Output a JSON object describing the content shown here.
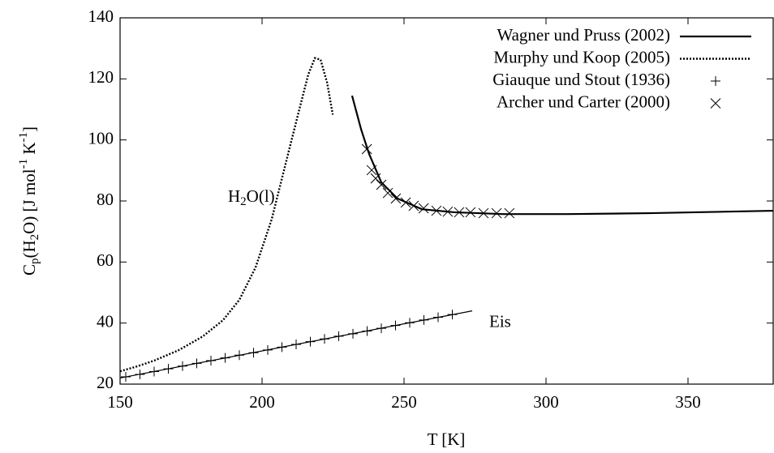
{
  "chart_data": {
    "type": "line",
    "xlabel": "T [K]",
    "ylabel_parts": [
      "C",
      "p",
      "(H",
      "2",
      "O) [J mol",
      "-1",
      " K",
      "-1",
      "]"
    ],
    "xlim": [
      150,
      380
    ],
    "ylim": [
      20,
      140
    ],
    "xticks": [
      150,
      200,
      250,
      300,
      350
    ],
    "yticks": [
      20,
      40,
      60,
      80,
      100,
      120,
      140
    ],
    "legend": "upper right",
    "annotations": [
      {
        "parts": [
          "H",
          "2",
          "O(l)"
        ],
        "x": 188,
        "y": 81
      },
      {
        "parts": [
          "Eis"
        ],
        "x": 280,
        "y": 40
      }
    ],
    "series": [
      {
        "name": "Wagner und Pruss (2002)",
        "style": "solid",
        "color": "#000000",
        "x": [
          231.7,
          234.9,
          237.7,
          242,
          247.7,
          256.3,
          267.7,
          284.9,
          307.7,
          336.3,
          380
        ],
        "values": [
          114.5,
          103.4,
          95.4,
          86.1,
          80.8,
          77.3,
          76.3,
          75.7,
          75.7,
          76,
          76.8
        ]
      },
      {
        "name": null,
        "style": "thin",
        "color": "#000000",
        "x": [
          150,
          274
        ],
        "values": [
          22,
          44
        ]
      },
      {
        "name": "Murphy und Koop (2005)",
        "style": "dotted",
        "color": "#000000",
        "x": [
          150,
          156.3,
          162,
          170.6,
          179.1,
          186.3,
          192,
          197.7,
          203.4,
          209.1,
          213.4,
          216.3,
          218.6,
          220.6,
          222.9,
          224.9
        ],
        "values": [
          24.2,
          25.9,
          27.7,
          31.1,
          35.6,
          41,
          47.6,
          58.2,
          74,
          95.2,
          111,
          121.5,
          126.8,
          126.3,
          118.8,
          108.3
        ]
      },
      {
        "name": "Giauque und Stout (1936)",
        "style": "plus",
        "color": "#000000",
        "x": [
          152,
          157,
          162,
          167,
          172,
          177,
          182,
          187,
          192,
          197,
          202,
          207,
          212,
          217,
          222,
          227,
          232,
          237,
          242,
          247,
          252,
          257,
          262,
          267
        ],
        "values": [
          22.4,
          23.2,
          24.1,
          25,
          25.9,
          26.8,
          27.7,
          28.6,
          29.5,
          30.3,
          31.2,
          32.1,
          33,
          33.9,
          34.8,
          35.7,
          36.5,
          37.4,
          38.3,
          39.2,
          40.1,
          41,
          41.9,
          42.8
        ]
      },
      {
        "name": "Archer und Carter (2000)",
        "style": "cross",
        "color": "#000000",
        "x": [
          236.9,
          238.6,
          240,
          242,
          244.3,
          247.1,
          250.6,
          253.4,
          256.9,
          261.4,
          265.4,
          269.4,
          273.4,
          278,
          282.6,
          287.1
        ],
        "values": [
          97,
          90.1,
          87.4,
          85.3,
          82.6,
          80.8,
          79.5,
          78.4,
          77.6,
          76.8,
          76.5,
          76.3,
          76.3,
          76,
          76,
          76
        ]
      }
    ]
  }
}
